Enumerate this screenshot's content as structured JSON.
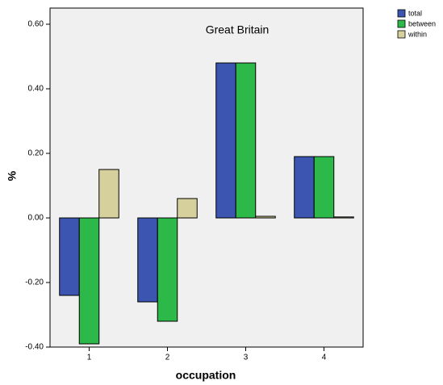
{
  "chart_data": {
    "type": "bar",
    "title": "Great Britain",
    "x_label": "occupation",
    "y_label": "%",
    "categories": [
      "1",
      "2",
      "3",
      "4"
    ],
    "series": [
      {
        "name": "total",
        "color": "#3b55b0",
        "values": [
          -0.24,
          -0.26,
          0.48,
          0.19
        ]
      },
      {
        "name": "between",
        "color": "#2db84a",
        "values": [
          -0.39,
          -0.32,
          0.48,
          0.19
        ]
      },
      {
        "name": "within",
        "color": "#d6d09c",
        "values": [
          0.15,
          0.06,
          0.005,
          0.003
        ]
      }
    ],
    "ylim": [
      -0.4,
      0.65
    ],
    "yticks": [
      {
        "value": -0.4,
        "label": "-0.40"
      },
      {
        "value": -0.2,
        "label": "-0.20"
      },
      {
        "value": 0,
        "label": "0.00"
      },
      {
        "value": 0.2,
        "label": "0.20"
      },
      {
        "value": 0.4,
        "label": "0.40"
      },
      {
        "value": 0.6,
        "label": "0.60"
      }
    ],
    "background": "#f0f0f0",
    "legend": "top-right"
  }
}
